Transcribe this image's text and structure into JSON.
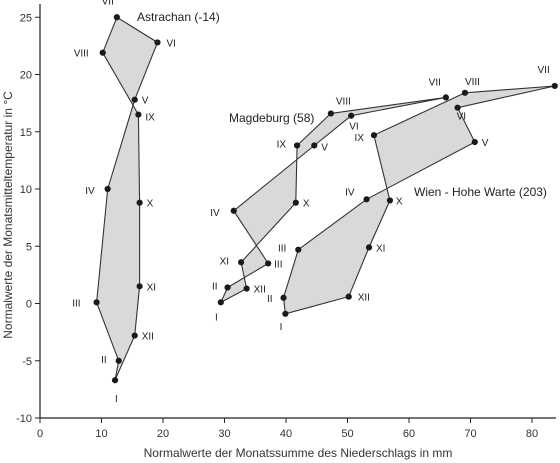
{
  "chart_data": {
    "type": "line",
    "xlabel": "Normalwerte der Monatssumme des Niederschlags in mm",
    "ylabel": "Normalwerte der Monatsmitteltemperatur in °C",
    "xlim": [
      0,
      84
    ],
    "ylim": [
      -10,
      26
    ],
    "xticks": [
      0,
      10,
      20,
      30,
      40,
      50,
      60,
      70,
      80
    ],
    "yticks": [
      -10,
      -5,
      0,
      5,
      10,
      15,
      20,
      25
    ],
    "xtick_labels": [
      "0",
      "10",
      "20",
      "30",
      "40",
      "50",
      "60",
      "70",
      "80"
    ],
    "ytick_labels": [
      "-10",
      "-5",
      "0",
      "5",
      "10",
      "15",
      "20",
      "25"
    ],
    "grid": false,
    "series": [
      {
        "name": "Astrachan (-14)",
        "points": [
          {
            "month": "I",
            "x": 12.2,
            "y": -6.7
          },
          {
            "month": "II",
            "x": 12.8,
            "y": -5.0
          },
          {
            "month": "III",
            "x": 9.2,
            "y": 0.1
          },
          {
            "month": "IV",
            "x": 11.0,
            "y": 10.0
          },
          {
            "month": "V",
            "x": 15.4,
            "y": 17.8
          },
          {
            "month": "VI",
            "x": 19.1,
            "y": 22.8
          },
          {
            "month": "VII",
            "x": 12.5,
            "y": 25.0
          },
          {
            "month": "VIII",
            "x": 10.2,
            "y": 21.9
          },
          {
            "month": "IX",
            "x": 16.0,
            "y": 16.5
          },
          {
            "month": "X",
            "x": 16.2,
            "y": 8.8
          },
          {
            "month": "XI",
            "x": 16.2,
            "y": 1.5
          },
          {
            "month": "XII",
            "x": 15.4,
            "y": -2.8
          }
        ]
      },
      {
        "name": "Magdeburg (58)",
        "points": [
          {
            "month": "I",
            "x": 29.4,
            "y": 0.1
          },
          {
            "month": "II",
            "x": 30.5,
            "y": 1.4
          },
          {
            "month": "III",
            "x": 37.1,
            "y": 3.5
          },
          {
            "month": "IV",
            "x": 31.5,
            "y": 8.1
          },
          {
            "month": "V",
            "x": 44.6,
            "y": 13.8
          },
          {
            "month": "VI",
            "x": 50.6,
            "y": 16.4
          },
          {
            "month": "VII",
            "x": 66.0,
            "y": 18.0
          },
          {
            "month": "VIII",
            "x": 47.3,
            "y": 16.6
          },
          {
            "month": "IX",
            "x": 41.8,
            "y": 13.8
          },
          {
            "month": "X",
            "x": 41.6,
            "y": 8.8
          },
          {
            "month": "XI",
            "x": 32.7,
            "y": 3.6
          },
          {
            "month": "XII",
            "x": 33.6,
            "y": 1.3
          }
        ]
      },
      {
        "name": "Wien - Hohe Warte (203)",
        "points": [
          {
            "month": "I",
            "x": 39.9,
            "y": -0.9
          },
          {
            "month": "II",
            "x": 39.6,
            "y": 0.5
          },
          {
            "month": "III",
            "x": 42.0,
            "y": 4.7
          },
          {
            "month": "IV",
            "x": 53.1,
            "y": 9.1
          },
          {
            "month": "V",
            "x": 70.7,
            "y": 14.1
          },
          {
            "month": "VI",
            "x": 67.9,
            "y": 17.1
          },
          {
            "month": "VII",
            "x": 83.7,
            "y": 19.0
          },
          {
            "month": "VIII",
            "x": 69.1,
            "y": 18.4
          },
          {
            "month": "IX",
            "x": 54.3,
            "y": 14.7
          },
          {
            "month": "X",
            "x": 56.9,
            "y": 9.0
          },
          {
            "month": "XI",
            "x": 53.5,
            "y": 4.9
          },
          {
            "month": "XII",
            "x": 50.2,
            "y": 0.6
          }
        ]
      }
    ]
  }
}
